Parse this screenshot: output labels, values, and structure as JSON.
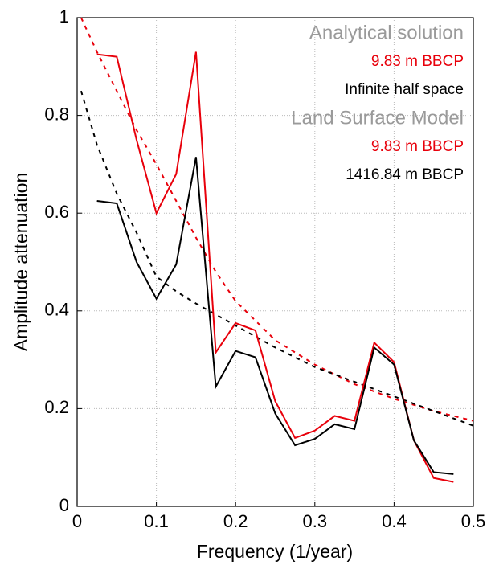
{
  "chart_data": {
    "type": "line",
    "xlabel": "Frequency (1/year)",
    "ylabel": "Amplitude attenuation",
    "xlim": [
      0,
      0.5
    ],
    "ylim": [
      0,
      1
    ],
    "xticks": [
      0,
      0.1,
      0.2,
      0.3,
      0.4,
      0.5
    ],
    "yticks": [
      0,
      0.2,
      0.4,
      0.6,
      0.8,
      1
    ],
    "grid": true,
    "groups": [
      {
        "title": "Analytical solution",
        "title_color": "#9a9a9a",
        "series": [
          {
            "name": "9.83 m BBCP",
            "color": "#e8000b",
            "dashed": true,
            "x": [
              0.005,
              0.025,
              0.05,
              0.075,
              0.1,
              0.125,
              0.15,
              0.175,
              0.2,
              0.25,
              0.3,
              0.35,
              0.4,
              0.45,
              0.5
            ],
            "values": [
              1.0,
              0.93,
              0.85,
              0.77,
              0.7,
              0.625,
              0.55,
              0.48,
              0.42,
              0.34,
              0.29,
              0.25,
              0.22,
              0.195,
              0.175
            ]
          },
          {
            "name": "Infinite half space",
            "color": "#000000",
            "dashed": true,
            "x": [
              0.005,
              0.025,
              0.05,
              0.075,
              0.1,
              0.125,
              0.15,
              0.2,
              0.25,
              0.3,
              0.35,
              0.4,
              0.45,
              0.5
            ],
            "values": [
              0.85,
              0.74,
              0.64,
              0.56,
              0.47,
              0.44,
              0.415,
              0.37,
              0.325,
              0.285,
              0.255,
              0.225,
              0.195,
              0.165
            ]
          }
        ]
      },
      {
        "title": "Land Surface Model",
        "title_color": "#9a9a9a",
        "series": [
          {
            "name": "9.83 m BBCP",
            "color": "#e8000b",
            "dashed": false,
            "x": [
              0.025,
              0.05,
              0.075,
              0.1,
              0.125,
              0.15,
              0.175,
              0.2,
              0.225,
              0.25,
              0.275,
              0.3,
              0.325,
              0.35,
              0.375,
              0.4,
              0.425,
              0.45,
              0.475
            ],
            "values": [
              0.925,
              0.92,
              0.75,
              0.6,
              0.68,
              0.93,
              0.315,
              0.375,
              0.36,
              0.215,
              0.14,
              0.155,
              0.185,
              0.175,
              0.335,
              0.295,
              0.135,
              0.058,
              0.05
            ]
          },
          {
            "name": "1416.84 m BBCP",
            "color": "#000000",
            "dashed": false,
            "x": [
              0.025,
              0.05,
              0.075,
              0.1,
              0.125,
              0.15,
              0.175,
              0.2,
              0.225,
              0.25,
              0.275,
              0.3,
              0.325,
              0.35,
              0.375,
              0.4,
              0.425,
              0.45,
              0.475
            ],
            "values": [
              0.625,
              0.62,
              0.5,
              0.425,
              0.495,
              0.715,
              0.245,
              0.318,
              0.305,
              0.19,
              0.125,
              0.138,
              0.168,
              0.158,
              0.325,
              0.29,
              0.135,
              0.07,
              0.066
            ]
          }
        ]
      }
    ]
  }
}
